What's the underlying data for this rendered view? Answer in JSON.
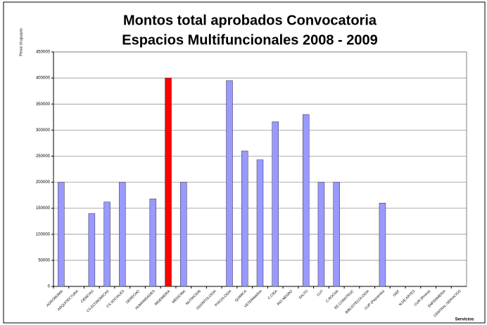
{
  "chart_data": {
    "type": "bar",
    "title": [
      "Montos total aprobados Convocatoria",
      "Espacios Multifuncionales 2008 - 2009"
    ],
    "y_label": "Pesos Uruguayos",
    "x_label": "Servicios",
    "categories": [
      "AGRONOMIA",
      "ARQUITECTURA",
      "CIENCIAS",
      "CS.ECONOMICAS",
      "CS.SOCIALES",
      "DERECHO",
      "HUMANIDADES",
      "INGENIERIA",
      "MEDICINA",
      "NUTRICION",
      "ODONTOLOGIA",
      "PSICOLOGIA",
      "QUIMICA",
      "VETERINARIA",
      "C.CIEA",
      "RIO NEGRO",
      "SALTO",
      "CUT",
      "C.ROCHA",
      "EE.CONSTRUC",
      "BIBLIOTECOLOGIA",
      "CUP (Paysandu)",
      "ISEF",
      "N.DE ARTES",
      "CUR (Rivera)",
      "ENFERMERIA",
      "CENTRAL-SERVICIOS"
    ],
    "values": [
      200000,
      0,
      140000,
      162000,
      200000,
      0,
      168000,
      400000,
      200000,
      0,
      0,
      395000,
      260000,
      243000,
      316000,
      0,
      330000,
      200000,
      200000,
      0,
      0,
      160000,
      0,
      0,
      0,
      0,
      0
    ],
    "colors": [
      "#9999ff",
      "#9999ff",
      "#9999ff",
      "#9999ff",
      "#9999ff",
      "#9999ff",
      "#9999ff",
      "#ff0000",
      "#9999ff",
      "#9999ff",
      "#9999ff",
      "#9999ff",
      "#9999ff",
      "#9999ff",
      "#9999ff",
      "#9999ff",
      "#9999ff",
      "#9999ff",
      "#9999ff",
      "#9999ff",
      "#9999ff",
      "#9999ff",
      "#9999ff",
      "#9999ff",
      "#9999ff",
      "#9999ff",
      "#9999ff"
    ],
    "ylim": [
      0,
      450000
    ],
    "yticks": [
      0,
      50000,
      100000,
      150000,
      200000,
      250000,
      300000,
      350000,
      400000,
      450000
    ],
    "grid": true
  }
}
